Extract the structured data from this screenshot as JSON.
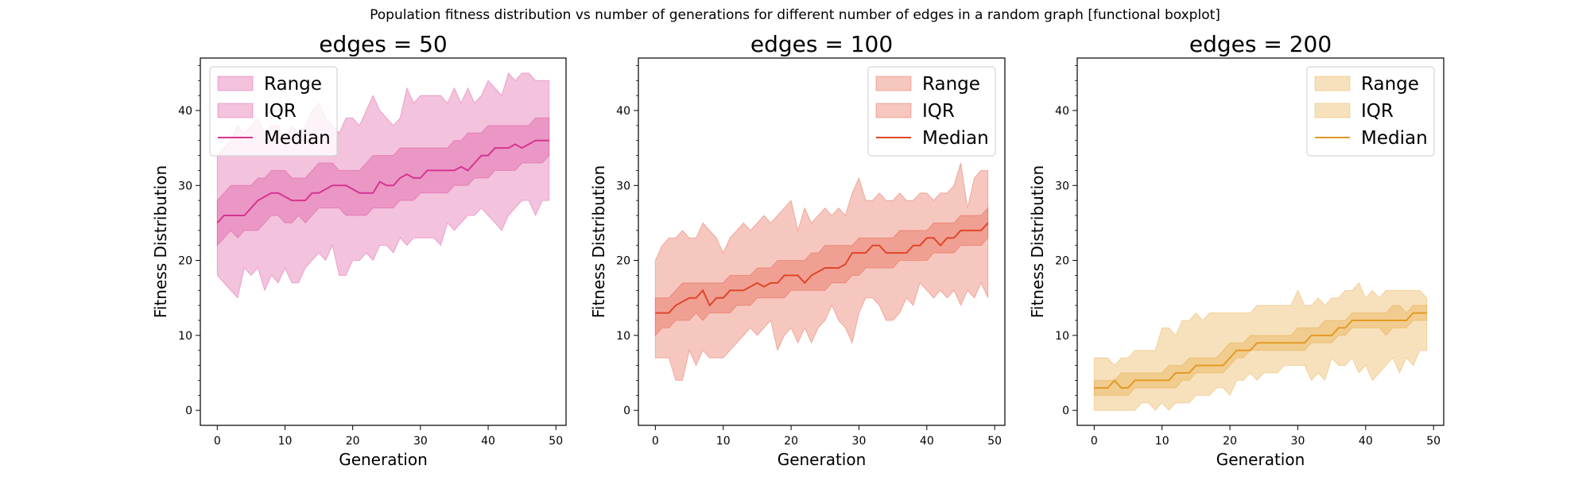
{
  "figure": {
    "suptitle": "Population fitness distribution vs number of generations for different number of edges in a random graph [functional boxplot]"
  },
  "chart_data": [
    {
      "type": "area",
      "title": "edges = 50",
      "xlabel": "Generation",
      "ylabel": "Fitness Distribution",
      "xlim": [
        -2.5,
        51.5
      ],
      "ylim": [
        -2,
        47
      ],
      "xticks": [
        0,
        10,
        20,
        30,
        40,
        50
      ],
      "yticks": [
        0,
        10,
        20,
        30,
        40
      ],
      "legend_position": "upper-left",
      "color": "#d6358f",
      "legend": [
        "Range",
        "IQR",
        "Median"
      ],
      "x": [
        0,
        1,
        2,
        3,
        4,
        5,
        6,
        7,
        8,
        9,
        10,
        11,
        12,
        13,
        14,
        15,
        16,
        17,
        18,
        19,
        20,
        21,
        22,
        23,
        24,
        25,
        26,
        27,
        28,
        29,
        30,
        31,
        32,
        33,
        34,
        35,
        36,
        37,
        38,
        39,
        40,
        41,
        42,
        43,
        44,
        45,
        46,
        47,
        48,
        49
      ],
      "series": [
        {
          "name": "Range",
          "kind": "band",
          "lower": [
            18,
            17,
            16,
            15,
            19,
            18,
            19,
            16,
            18,
            17,
            19,
            17,
            17,
            19,
            20,
            21,
            20,
            22,
            18,
            18,
            20,
            20,
            21,
            20,
            22,
            22,
            21,
            23,
            22,
            23,
            23,
            23,
            23,
            22,
            25,
            24,
            25,
            26,
            26,
            27,
            26,
            25,
            24,
            26,
            27,
            28,
            28,
            26,
            28,
            28
          ],
          "upper": [
            34,
            35,
            36,
            38,
            37,
            38,
            39,
            37,
            38,
            38,
            36,
            38,
            37,
            38,
            40,
            41,
            39,
            38,
            37,
            39,
            39,
            38,
            40,
            42,
            40,
            39,
            38,
            39,
            43,
            41,
            42,
            42,
            42,
            42,
            41,
            43,
            41,
            43,
            41,
            42,
            44,
            43,
            42,
            45,
            44,
            45,
            45,
            44,
            44,
            44
          ]
        },
        {
          "name": "IQR",
          "kind": "band",
          "lower": [
            22,
            23,
            24,
            23,
            24,
            24,
            24,
            25,
            26,
            26,
            25,
            25,
            26,
            25,
            26,
            27,
            27,
            27,
            27,
            26,
            26,
            26,
            26,
            27,
            27,
            27,
            27,
            28,
            28,
            28,
            29,
            29,
            29,
            29,
            29,
            30,
            30,
            30,
            31,
            31,
            31,
            32,
            32,
            32,
            32,
            33,
            33,
            33,
            33,
            34
          ],
          "upper": [
            28,
            29,
            30,
            30,
            30,
            30,
            31,
            31,
            32,
            32,
            32,
            31,
            31,
            31,
            32,
            33,
            33,
            33,
            32,
            32,
            32,
            32,
            33,
            34,
            34,
            34,
            34,
            35,
            35,
            35,
            35,
            35,
            35,
            35,
            35,
            36,
            36,
            37,
            37,
            37,
            38,
            38,
            38,
            38,
            38,
            38,
            38,
            39,
            39,
            39
          ]
        },
        {
          "name": "Median",
          "kind": "line",
          "values": [
            25,
            26,
            26,
            26,
            26,
            27,
            28,
            28.5,
            29,
            29,
            28.5,
            28,
            28,
            28,
            29,
            29,
            29.5,
            30,
            30,
            30,
            29.5,
            29,
            29,
            29,
            30.5,
            30,
            30,
            31,
            31.5,
            31,
            31,
            32,
            32,
            32,
            32,
            32,
            32.5,
            32,
            33,
            34,
            34,
            35,
            35,
            35,
            35.5,
            35,
            35.5,
            36,
            36,
            36
          ]
        }
      ]
    },
    {
      "type": "area",
      "title": "edges = 100",
      "xlabel": "Generation",
      "ylabel": "Fitness Distribution",
      "xlim": [
        -2.5,
        51.5
      ],
      "ylim": [
        -2,
        47
      ],
      "xticks": [
        0,
        10,
        20,
        30,
        40,
        50
      ],
      "yticks": [
        0,
        10,
        20,
        30,
        40
      ],
      "legend_position": "upper-right",
      "color": "#e0462b",
      "legend": [
        "Range",
        "IQR",
        "Median"
      ],
      "x": [
        0,
        1,
        2,
        3,
        4,
        5,
        6,
        7,
        8,
        9,
        10,
        11,
        12,
        13,
        14,
        15,
        16,
        17,
        18,
        19,
        20,
        21,
        22,
        23,
        24,
        25,
        26,
        27,
        28,
        29,
        30,
        31,
        32,
        33,
        34,
        35,
        36,
        37,
        38,
        39,
        40,
        41,
        42,
        43,
        44,
        45,
        46,
        47,
        48,
        49
      ],
      "series": [
        {
          "name": "Range",
          "kind": "band",
          "lower": [
            7,
            7,
            7,
            4,
            4,
            8,
            6,
            8,
            7,
            7,
            7,
            8,
            9,
            10,
            11,
            10,
            11,
            12,
            8,
            10,
            11,
            9,
            11,
            9,
            11,
            12,
            14,
            12,
            11,
            9,
            13,
            15,
            15,
            14,
            12,
            12,
            13,
            15,
            14,
            17,
            16,
            15,
            16,
            15,
            16,
            14,
            16,
            15,
            17,
            15
          ],
          "upper": [
            20,
            22,
            23,
            23,
            24,
            23,
            23,
            25,
            24,
            23,
            21,
            23,
            24,
            25,
            24,
            25,
            26,
            25,
            26,
            27,
            28,
            24,
            27,
            25,
            26,
            27,
            26,
            27,
            26,
            29,
            31,
            28,
            28,
            29,
            28,
            28,
            29,
            28,
            28,
            29,
            29,
            28,
            29,
            29,
            30,
            33,
            27,
            31,
            32,
            32
          ]
        },
        {
          "name": "IQR",
          "kind": "band",
          "lower": [
            10,
            11,
            11,
            12,
            12,
            12,
            13,
            12,
            13,
            13,
            13,
            13,
            14,
            14,
            14,
            15,
            15,
            15,
            15,
            15,
            16,
            16,
            16,
            16,
            16,
            16,
            17,
            17,
            17,
            18,
            18,
            19,
            19,
            19,
            19,
            19,
            20,
            20,
            20,
            20,
            20,
            21,
            21,
            21,
            21,
            22,
            22,
            22,
            22,
            23
          ],
          "upper": [
            15,
            15,
            15,
            16,
            17,
            17,
            17,
            17,
            17,
            17,
            17,
            18,
            18,
            18,
            18,
            19,
            19,
            19,
            20,
            20,
            20,
            20,
            20,
            21,
            21,
            22,
            22,
            22,
            22,
            22,
            23,
            23,
            23,
            23,
            23,
            23,
            24,
            24,
            24,
            24,
            24,
            25,
            25,
            25,
            25,
            26,
            26,
            26,
            26,
            27
          ]
        },
        {
          "name": "Median",
          "kind": "line",
          "values": [
            13,
            13,
            13,
            14,
            14.5,
            15,
            15,
            16,
            14,
            15,
            15,
            16,
            16,
            16,
            16.5,
            17,
            16.5,
            17,
            17,
            18,
            18,
            18,
            17,
            18,
            18.5,
            19,
            19,
            19,
            19.5,
            21,
            21,
            21,
            22,
            22,
            21,
            21,
            21,
            21,
            22,
            22,
            23,
            23,
            22,
            23,
            23,
            24,
            24,
            24,
            24,
            25
          ]
        }
      ]
    },
    {
      "type": "area",
      "title": "edges = 200",
      "xlabel": "Generation",
      "ylabel": "Fitness Distribution",
      "xlim": [
        -2.5,
        51.5
      ],
      "ylim": [
        -2,
        47
      ],
      "xticks": [
        0,
        10,
        20,
        30,
        40,
        50
      ],
      "yticks": [
        0,
        10,
        20,
        30,
        40
      ],
      "legend_position": "upper-right",
      "color": "#e39a25",
      "legend": [
        "Range",
        "IQR",
        "Median"
      ],
      "x": [
        0,
        1,
        2,
        3,
        4,
        5,
        6,
        7,
        8,
        9,
        10,
        11,
        12,
        13,
        14,
        15,
        16,
        17,
        18,
        19,
        20,
        21,
        22,
        23,
        24,
        25,
        26,
        27,
        28,
        29,
        30,
        31,
        32,
        33,
        34,
        35,
        36,
        37,
        38,
        39,
        40,
        41,
        42,
        43,
        44,
        45,
        46,
        47,
        48,
        49
      ],
      "series": [
        {
          "name": "Range",
          "kind": "band",
          "lower": [
            0,
            0,
            0,
            0,
            0,
            0,
            0,
            1,
            1,
            0,
            1,
            0,
            1,
            1,
            1,
            2,
            2,
            2,
            3,
            3,
            2,
            4,
            4,
            5,
            4,
            5,
            5,
            5,
            6,
            6,
            6,
            6,
            4,
            5,
            4,
            7,
            6,
            6,
            7,
            5,
            6,
            4,
            5,
            6,
            7,
            5,
            7,
            6,
            8,
            8
          ],
          "upper": [
            7,
            7,
            7,
            6,
            7,
            7,
            8,
            8,
            8,
            8,
            11,
            11,
            10,
            12,
            12,
            13,
            12,
            13,
            13,
            13,
            13,
            13,
            13,
            13,
            14,
            14,
            14,
            14,
            14,
            14,
            16,
            14,
            14,
            15,
            14,
            15,
            15,
            16,
            16,
            17,
            15,
            16,
            15,
            16,
            16,
            16,
            16,
            16,
            16,
            15
          ]
        },
        {
          "name": "IQR",
          "kind": "band",
          "lower": [
            2,
            2,
            2,
            2,
            2,
            2,
            3,
            3,
            3,
            3,
            3,
            3,
            3,
            4,
            4,
            5,
            5,
            5,
            5,
            5,
            6,
            7,
            7,
            8,
            8,
            8,
            8,
            8,
            8,
            8,
            8,
            8,
            9,
            9,
            9,
            9,
            10,
            10,
            11,
            11,
            11,
            11,
            11,
            10,
            11,
            11,
            11,
            12,
            12,
            12
          ],
          "upper": [
            4,
            4,
            4,
            4,
            5,
            5,
            5,
            5,
            5,
            5,
            5,
            6,
            6,
            6,
            7,
            7,
            7,
            7,
            7,
            8,
            9,
            9,
            9,
            10,
            10,
            10,
            10,
            10,
            10,
            10,
            11,
            11,
            11,
            11,
            12,
            12,
            12,
            12,
            13,
            13,
            13,
            13,
            13,
            13,
            14,
            14,
            13,
            14,
            14,
            14
          ]
        },
        {
          "name": "Median",
          "kind": "line",
          "values": [
            3,
            3,
            3,
            4,
            3,
            3,
            4,
            4,
            4,
            4,
            4,
            4,
            5,
            5,
            5,
            6,
            6,
            6,
            6,
            6,
            7,
            8,
            8,
            8,
            9,
            9,
            9,
            9,
            9,
            9,
            9,
            9,
            10,
            10,
            10,
            10,
            11,
            11,
            12,
            12,
            12,
            12,
            12,
            12,
            12,
            12,
            12,
            13,
            13,
            13
          ]
        }
      ]
    }
  ]
}
